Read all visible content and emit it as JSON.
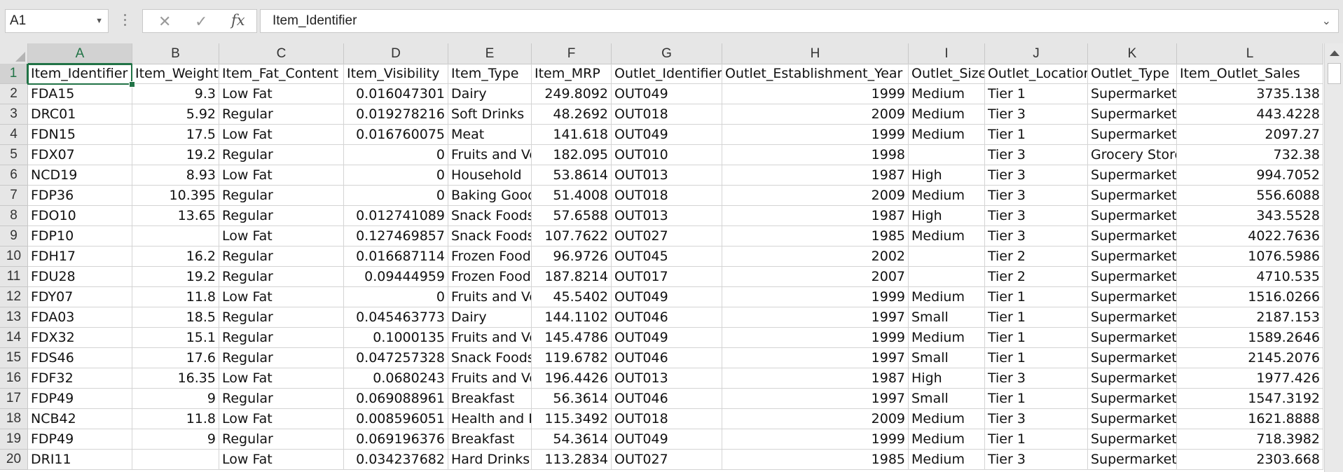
{
  "formula_bar": {
    "name_box": "A1",
    "cancel_icon": "✕",
    "enter_icon": "✓",
    "fx_label": "fx",
    "formula": "Item_Identifier"
  },
  "columns": [
    "A",
    "B",
    "C",
    "D",
    "E",
    "F",
    "G",
    "H",
    "I",
    "J",
    "K",
    "L"
  ],
  "rows": [
    {
      "n": "1",
      "cells": [
        "Item_Identifier",
        "Item_Weight",
        "Item_Fat_Content",
        "Item_Visibility",
        "Item_Type",
        "Item_MRP",
        "Outlet_Identifier",
        "Outlet_Establishment_Year",
        "Outlet_Size",
        "Outlet_Location",
        "Outlet_Type",
        "Item_Outlet_Sales"
      ]
    },
    {
      "n": "2",
      "cells": [
        "FDA15",
        "9.3",
        "Low Fat",
        "0.016047301",
        "Dairy",
        "249.8092",
        "OUT049",
        "1999",
        "Medium",
        "Tier 1",
        "Supermarket",
        "3735.138"
      ]
    },
    {
      "n": "3",
      "cells": [
        "DRC01",
        "5.92",
        "Regular",
        "0.019278216",
        "Soft Drinks",
        "48.2692",
        "OUT018",
        "2009",
        "Medium",
        "Tier 3",
        "Supermarket",
        "443.4228"
      ]
    },
    {
      "n": "4",
      "cells": [
        "FDN15",
        "17.5",
        "Low Fat",
        "0.016760075",
        "Meat",
        "141.618",
        "OUT049",
        "1999",
        "Medium",
        "Tier 1",
        "Supermarket",
        "2097.27"
      ]
    },
    {
      "n": "5",
      "cells": [
        "FDX07",
        "19.2",
        "Regular",
        "0",
        "Fruits and Ve",
        "182.095",
        "OUT010",
        "1998",
        "",
        "Tier 3",
        "Grocery Store",
        "732.38"
      ]
    },
    {
      "n": "6",
      "cells": [
        "NCD19",
        "8.93",
        "Low Fat",
        "0",
        "Household",
        "53.8614",
        "OUT013",
        "1987",
        "High",
        "Tier 3",
        "Supermarket",
        "994.7052"
      ]
    },
    {
      "n": "7",
      "cells": [
        "FDP36",
        "10.395",
        "Regular",
        "0",
        "Baking Good",
        "51.4008",
        "OUT018",
        "2009",
        "Medium",
        "Tier 3",
        "Supermarket",
        "556.6088"
      ]
    },
    {
      "n": "8",
      "cells": [
        "FDO10",
        "13.65",
        "Regular",
        "0.012741089",
        "Snack Foods",
        "57.6588",
        "OUT013",
        "1987",
        "High",
        "Tier 3",
        "Supermarket",
        "343.5528"
      ]
    },
    {
      "n": "9",
      "cells": [
        "FDP10",
        "",
        "Low Fat",
        "0.127469857",
        "Snack Foods",
        "107.7622",
        "OUT027",
        "1985",
        "Medium",
        "Tier 3",
        "Supermarket",
        "4022.7636"
      ]
    },
    {
      "n": "10",
      "cells": [
        "FDH17",
        "16.2",
        "Regular",
        "0.016687114",
        "Frozen Foods",
        "96.9726",
        "OUT045",
        "2002",
        "",
        "Tier 2",
        "Supermarket",
        "1076.5986"
      ]
    },
    {
      "n": "11",
      "cells": [
        "FDU28",
        "19.2",
        "Regular",
        "0.09444959",
        "Frozen Foods",
        "187.8214",
        "OUT017",
        "2007",
        "",
        "Tier 2",
        "Supermarket",
        "4710.535"
      ]
    },
    {
      "n": "12",
      "cells": [
        "FDY07",
        "11.8",
        "Low Fat",
        "0",
        "Fruits and Ve",
        "45.5402",
        "OUT049",
        "1999",
        "Medium",
        "Tier 1",
        "Supermarket",
        "1516.0266"
      ]
    },
    {
      "n": "13",
      "cells": [
        "FDA03",
        "18.5",
        "Regular",
        "0.045463773",
        "Dairy",
        "144.1102",
        "OUT046",
        "1997",
        "Small",
        "Tier 1",
        "Supermarket",
        "2187.153"
      ]
    },
    {
      "n": "14",
      "cells": [
        "FDX32",
        "15.1",
        "Regular",
        "0.1000135",
        "Fruits and Ve",
        "145.4786",
        "OUT049",
        "1999",
        "Medium",
        "Tier 1",
        "Supermarket",
        "1589.2646"
      ]
    },
    {
      "n": "15",
      "cells": [
        "FDS46",
        "17.6",
        "Regular",
        "0.047257328",
        "Snack Foods",
        "119.6782",
        "OUT046",
        "1997",
        "Small",
        "Tier 1",
        "Supermarket",
        "2145.2076"
      ]
    },
    {
      "n": "16",
      "cells": [
        "FDF32",
        "16.35",
        "Low Fat",
        "0.0680243",
        "Fruits and Ve",
        "196.4426",
        "OUT013",
        "1987",
        "High",
        "Tier 3",
        "Supermarket",
        "1977.426"
      ]
    },
    {
      "n": "17",
      "cells": [
        "FDP49",
        "9",
        "Regular",
        "0.069088961",
        "Breakfast",
        "56.3614",
        "OUT046",
        "1997",
        "Small",
        "Tier 1",
        "Supermarket",
        "1547.3192"
      ]
    },
    {
      "n": "18",
      "cells": [
        "NCB42",
        "11.8",
        "Low Fat",
        "0.008596051",
        "Health and H",
        "115.3492",
        "OUT018",
        "2009",
        "Medium",
        "Tier 3",
        "Supermarket",
        "1621.8888"
      ]
    },
    {
      "n": "19",
      "cells": [
        "FDP49",
        "9",
        "Regular",
        "0.069196376",
        "Breakfast",
        "54.3614",
        "OUT049",
        "1999",
        "Medium",
        "Tier 1",
        "Supermarket",
        "718.3982"
      ]
    },
    {
      "n": "20",
      "cells": [
        "DRI11",
        "",
        "Low Fat",
        "0.034237682",
        "Hard Drinks",
        "113.2834",
        "OUT027",
        "1985",
        "Medium",
        "Tier 3",
        "Supermarket",
        "2303.668"
      ]
    }
  ]
}
